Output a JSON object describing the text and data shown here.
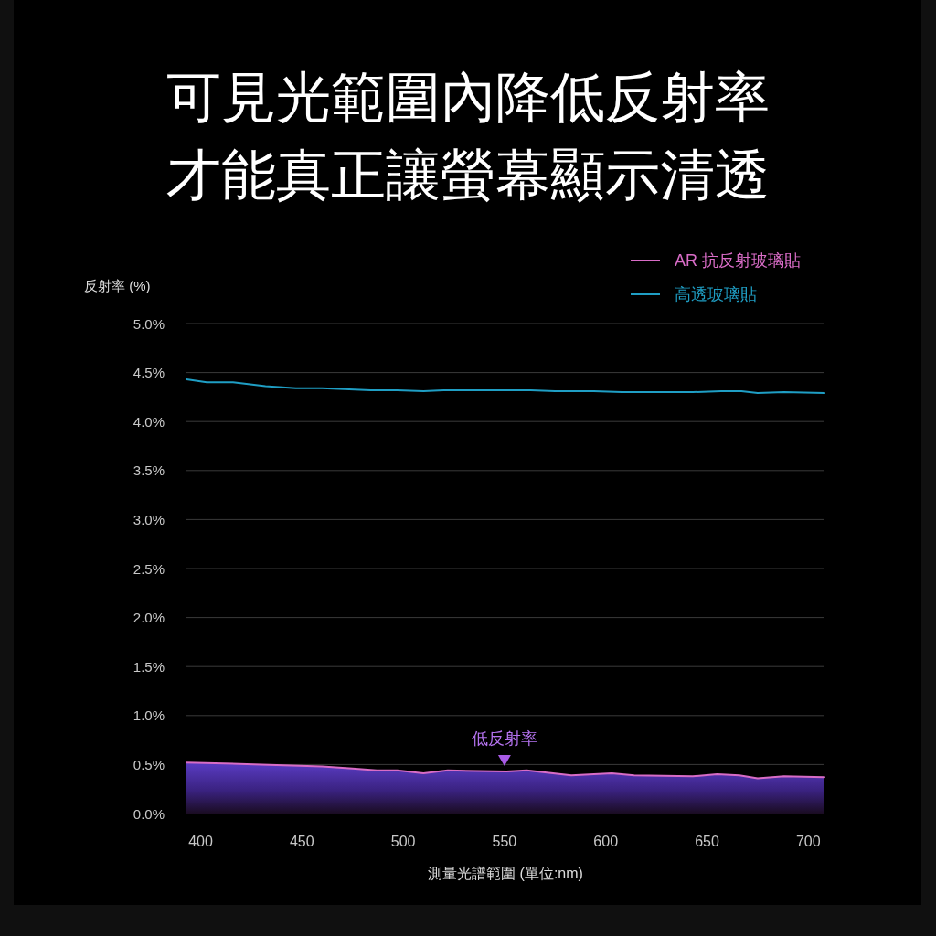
{
  "chart_data": {
    "type": "line",
    "title": "可見光範圍內降低反射率",
    "subtitle": "才能真正讓螢幕顯示清透",
    "xlabel": "測量光譜範圍 (單位:nm)",
    "ylabel": "反射率 (%)",
    "xlim": [
      393,
      708
    ],
    "xticks": [
      400,
      450,
      500,
      550,
      600,
      650,
      700
    ],
    "ylim": [
      0,
      5
    ],
    "yticks": [
      {
        "value": 0,
        "label": "0.0%"
      },
      {
        "value": 0.5,
        "label": "0.5%"
      },
      {
        "value": 1,
        "label": "1.0%"
      },
      {
        "value": 1.5,
        "label": "1.5%"
      },
      {
        "value": 2,
        "label": "2.0%"
      },
      {
        "value": 2.5,
        "label": "2.5%"
      },
      {
        "value": 3,
        "label": "3.0%"
      },
      {
        "value": 3.5,
        "label": "3.5%"
      },
      {
        "value": 4,
        "label": "4.0%"
      },
      {
        "value": 4.5,
        "label": "4.5%"
      },
      {
        "value": 5,
        "label": "5.0%"
      }
    ],
    "grid": "y",
    "legend": "top right",
    "series": [
      {
        "name": "AR 抗反射玻璃貼",
        "type": "area",
        "color": "#d86cc6",
        "x": [
          393,
          430,
          460,
          475,
          487,
          497,
          510,
          522,
          551,
          561,
          583,
          603,
          614,
          643,
          655,
          666,
          675,
          688,
          708
        ],
        "values": [
          0.52,
          0.5,
          0.48,
          0.46,
          0.44,
          0.44,
          0.41,
          0.44,
          0.43,
          0.44,
          0.39,
          0.41,
          0.39,
          0.38,
          0.4,
          0.39,
          0.36,
          0.38,
          0.37
        ]
      },
      {
        "name": "高透玻璃貼",
        "type": "line",
        "color": "#1f9ec4",
        "x": [
          393,
          403,
          416,
          432,
          447,
          460,
          484,
          497,
          510,
          520,
          563,
          575,
          594,
          608,
          629,
          643,
          657,
          667,
          675,
          688,
          708
        ],
        "values": [
          4.43,
          4.4,
          4.4,
          4.36,
          4.34,
          4.34,
          4.32,
          4.32,
          4.31,
          4.32,
          4.32,
          4.31,
          4.31,
          4.3,
          4.3,
          4.3,
          4.31,
          4.31,
          4.29,
          4.3,
          4.29
        ]
      }
    ],
    "annotations": [
      {
        "text": "低反射率",
        "x": 550,
        "y": 0.43
      }
    ]
  }
}
